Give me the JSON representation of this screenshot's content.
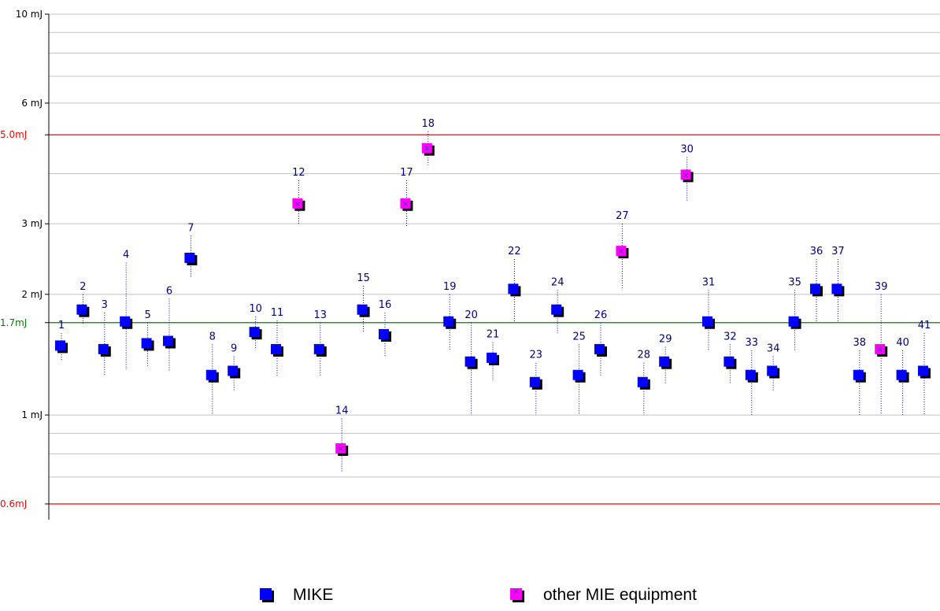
{
  "chart_data": {
    "type": "scatter",
    "title": "",
    "xlabel": "",
    "ylabel": "",
    "y_scale": "log",
    "ylim": [
      0.6,
      10
    ],
    "grid": true,
    "y_ticks": [
      {
        "value": 10,
        "label": "10 mJ"
      },
      {
        "value": 6,
        "label": "6 mJ"
      },
      {
        "value": 3,
        "label": "3 mJ"
      },
      {
        "value": 2,
        "label": "2 mJ"
      },
      {
        "value": 1,
        "label": "1 mJ"
      }
    ],
    "reference_lines": [
      {
        "value": 5.0,
        "label": "5.0mJ",
        "color": "#ff0000"
      },
      {
        "value": 1.7,
        "label": "1.7mJ",
        "color": "#008000"
      },
      {
        "value": 0.6,
        "label": "0.6mJ",
        "color": "#ff0000"
      }
    ],
    "colors": {
      "mike": "#0000ff",
      "other": "#ff00ff",
      "range_line": "#000080",
      "point_label": "#000080",
      "grid": "#c0c0c0",
      "axis": "#000000"
    },
    "series": [
      {
        "name": "MIKE",
        "key": "mike",
        "points": [
          {
            "label": "1",
            "x": 1,
            "y": 1.48,
            "low": 1.36,
            "high": 1.6
          },
          {
            "label": "2",
            "x": 2,
            "y": 1.82,
            "low": 1.68,
            "high": 2.0
          },
          {
            "label": "3",
            "x": 3,
            "y": 1.45,
            "low": 1.25,
            "high": 1.8
          },
          {
            "label": "4",
            "x": 4,
            "y": 1.7,
            "low": 1.3,
            "high": 2.4
          },
          {
            "label": "5",
            "x": 5,
            "y": 1.5,
            "low": 1.32,
            "high": 1.7
          },
          {
            "label": "6",
            "x": 6,
            "y": 1.52,
            "low": 1.28,
            "high": 1.95
          },
          {
            "label": "7",
            "x": 7,
            "y": 2.45,
            "low": 2.2,
            "high": 2.8
          },
          {
            "label": "8",
            "x": 8,
            "y": 1.25,
            "low": 1.0,
            "high": 1.5
          },
          {
            "label": "9",
            "x": 9,
            "y": 1.28,
            "low": 1.15,
            "high": 1.4
          },
          {
            "label": "10",
            "x": 10,
            "y": 1.6,
            "low": 1.46,
            "high": 1.76
          },
          {
            "label": "11",
            "x": 11,
            "y": 1.45,
            "low": 1.25,
            "high": 1.72
          },
          {
            "label": "13",
            "x": 13,
            "y": 1.45,
            "low": 1.25,
            "high": 1.7
          },
          {
            "label": "15",
            "x": 15,
            "y": 1.82,
            "low": 1.6,
            "high": 2.1
          },
          {
            "label": "16",
            "x": 16,
            "y": 1.58,
            "low": 1.4,
            "high": 1.8
          },
          {
            "label": "19",
            "x": 19,
            "y": 1.7,
            "low": 1.45,
            "high": 2.0
          },
          {
            "label": "20",
            "x": 20,
            "y": 1.35,
            "low": 1.0,
            "high": 1.7
          },
          {
            "label": "21",
            "x": 21,
            "y": 1.38,
            "low": 1.22,
            "high": 1.52
          },
          {
            "label": "22",
            "x": 22,
            "y": 2.05,
            "low": 1.7,
            "high": 2.45
          },
          {
            "label": "23",
            "x": 23,
            "y": 1.2,
            "low": 1.0,
            "high": 1.35
          },
          {
            "label": "24",
            "x": 24,
            "y": 1.82,
            "low": 1.6,
            "high": 2.05
          },
          {
            "label": "25",
            "x": 25,
            "y": 1.25,
            "low": 1.0,
            "high": 1.5
          },
          {
            "label": "26",
            "x": 26,
            "y": 1.45,
            "low": 1.25,
            "high": 1.7
          },
          {
            "label": "28",
            "x": 28,
            "y": 1.2,
            "low": 1.0,
            "high": 1.35
          },
          {
            "label": "29",
            "x": 29,
            "y": 1.35,
            "low": 1.2,
            "high": 1.48
          },
          {
            "label": "31",
            "x": 31,
            "y": 1.7,
            "low": 1.45,
            "high": 2.05
          },
          {
            "label": "32",
            "x": 32,
            "y": 1.35,
            "low": 1.2,
            "high": 1.5
          },
          {
            "label": "33",
            "x": 33,
            "y": 1.25,
            "low": 1.0,
            "high": 1.45
          },
          {
            "label": "34",
            "x": 34,
            "y": 1.28,
            "low": 1.15,
            "high": 1.4
          },
          {
            "label": "35",
            "x": 35,
            "y": 1.7,
            "low": 1.45,
            "high": 2.05
          },
          {
            "label": "36",
            "x": 36,
            "y": 2.05,
            "low": 1.7,
            "high": 2.45
          },
          {
            "label": "37",
            "x": 37,
            "y": 2.05,
            "low": 1.7,
            "high": 2.45
          },
          {
            "label": "38",
            "x": 38,
            "y": 1.25,
            "low": 1.0,
            "high": 1.45
          },
          {
            "label": "40",
            "x": 40,
            "y": 1.25,
            "low": 1.0,
            "high": 1.45
          },
          {
            "label": "41",
            "x": 41,
            "y": 1.28,
            "low": 1.0,
            "high": 1.6
          }
        ]
      },
      {
        "name": "other MIE equipment",
        "key": "other",
        "points": [
          {
            "label": "12",
            "x": 12,
            "y": 3.35,
            "low": 3.0,
            "high": 3.85
          },
          {
            "label": "14",
            "x": 14,
            "y": 0.82,
            "low": 0.72,
            "high": 0.98
          },
          {
            "label": "17",
            "x": 17,
            "y": 3.35,
            "low": 2.95,
            "high": 3.85
          },
          {
            "label": "18",
            "x": 18,
            "y": 4.6,
            "low": 4.2,
            "high": 5.1
          },
          {
            "label": "27",
            "x": 27,
            "y": 2.55,
            "low": 2.05,
            "high": 3.0
          },
          {
            "label": "30",
            "x": 30,
            "y": 3.95,
            "low": 3.4,
            "high": 4.4
          },
          {
            "label": "39",
            "x": 39,
            "y": 1.45,
            "low": 1.0,
            "high": 2.0
          }
        ]
      }
    ],
    "legend": {
      "placement": "bottom",
      "items": [
        {
          "label": "MIKE",
          "key": "mike"
        },
        {
          "label": "other MIE equipment",
          "key": "other"
        }
      ]
    }
  }
}
